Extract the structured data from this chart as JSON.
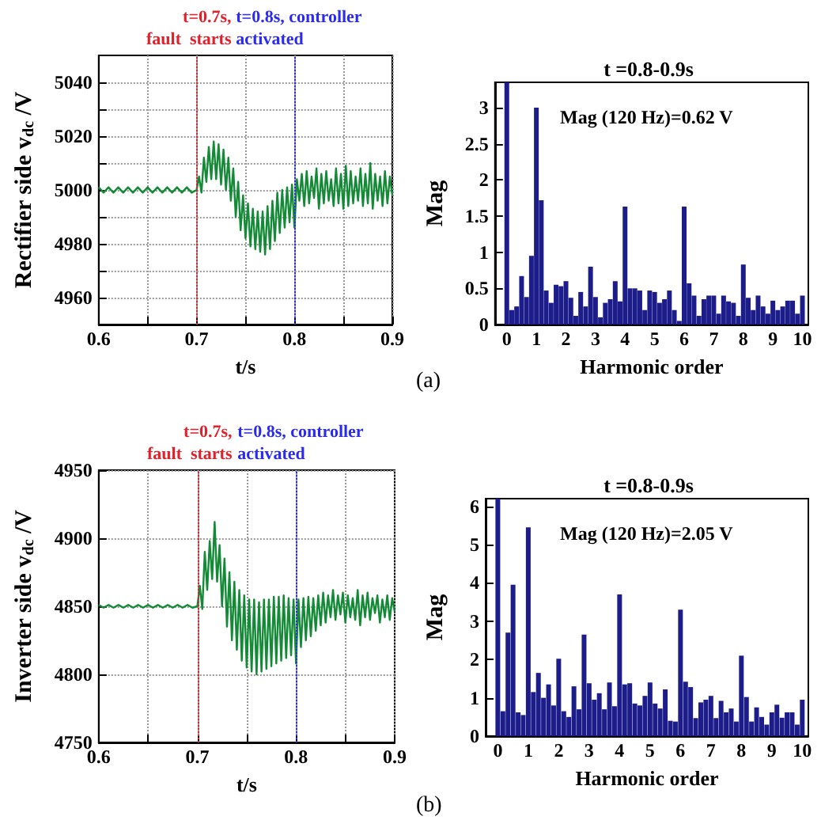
{
  "chart_data": [
    {
      "type": "line",
      "ylabel": "Rectifier side v$_{dc}$ /V",
      "xlabel": "t/s",
      "grid": true,
      "marker": "none",
      "xlim": [
        0.6,
        0.9
      ],
      "xticks": [
        0.6,
        {
          "value": 0.65,
          "label": null
        },
        0.7,
        {
          "value": 0.75,
          "label": null
        },
        0.8,
        {
          "value": 0.85,
          "label": null
        },
        0.9
      ],
      "ylim": [
        4950,
        5050
      ],
      "yticks": [
        4960,
        {
          "value": 4970,
          "label": null
        },
        4980,
        {
          "value": 4990,
          "label": null
        },
        5000,
        {
          "value": 5010,
          "label": null
        },
        5020,
        {
          "value": 5030,
          "label": null
        },
        5040
      ],
      "ref_lines": [
        {
          "axis": "x",
          "value": 0.7,
          "label": "t=0.7s,\nfault  starts",
          "color": "#e0202a",
          "line_style": "dotted"
        },
        {
          "axis": "x",
          "value": 0.8,
          "label": "t=0.8s, controller\nactivated",
          "color": "#2a2af0",
          "line_style": "dotted"
        }
      ],
      "series": [
        {
          "color": "#138a36",
          "x": [
            0.6,
            0.605,
            0.61,
            0.615,
            0.62,
            0.625,
            0.63,
            0.635,
            0.64,
            0.645,
            0.65,
            0.655,
            0.66,
            0.665,
            0.67,
            0.675,
            0.68,
            0.685,
            0.69,
            0.695,
            0.7,
            0.7025,
            0.705,
            0.7075,
            0.71,
            0.7125,
            0.715,
            0.7175,
            0.72,
            0.7225,
            0.725,
            0.7275,
            0.73,
            0.7325,
            0.735,
            0.7375,
            0.74,
            0.7425,
            0.745,
            0.7475,
            0.75,
            0.7525,
            0.755,
            0.7575,
            0.76,
            0.7625,
            0.765,
            0.7675,
            0.77,
            0.7725,
            0.775,
            0.7775,
            0.78,
            0.7825,
            0.785,
            0.7875,
            0.79,
            0.7925,
            0.795,
            0.7975,
            0.8,
            0.8025,
            0.805,
            0.8075,
            0.81,
            0.8125,
            0.815,
            0.8175,
            0.82,
            0.8225,
            0.825,
            0.8275,
            0.83,
            0.8325,
            0.835,
            0.8375,
            0.84,
            0.8425,
            0.845,
            0.8475,
            0.85,
            0.8525,
            0.855,
            0.8575,
            0.86,
            0.8625,
            0.865,
            0.8675,
            0.87,
            0.8725,
            0.875,
            0.8775,
            0.88,
            0.8825,
            0.885,
            0.8875,
            0.89,
            0.8925,
            0.895,
            0.8975,
            0.9
          ],
          "values": [
            5001,
            4999,
            5001,
            4999,
            5001,
            4999,
            5001,
            4999,
            5001,
            4999,
            5001,
            4999,
            5001,
            4999,
            5001,
            4999,
            5001,
            4999,
            5001,
            4999,
            5000,
            5005,
            4999,
            5012,
            5003,
            5016,
            5004,
            5018,
            5004,
            5017,
            5002,
            5015,
            5000,
            5012,
            4996,
            5008,
            4990,
            5003,
            4985,
            4998,
            4982,
            4995,
            4979,
            4993,
            4978,
            4992,
            4977,
            4992,
            4976,
            4994,
            4978,
            4996,
            4981,
            4999,
            4984,
            5000,
            4986,
            5001,
            4988,
            5002,
            4986,
            5004,
            4996,
            5006,
            4994,
            5007,
            4995,
            5005,
            4997,
            5008,
            4993,
            5006,
            4995,
            5007,
            4996,
            5004,
            4994,
            5008,
            4995,
            5006,
            4993,
            5009,
            4994,
            5007,
            4995,
            5005,
            4996,
            5008,
            4994,
            5006,
            4995,
            5010,
            4993,
            5006,
            4996,
            5005,
            4994,
            5007,
            4995,
            5005,
            4998
          ]
        }
      ]
    },
    {
      "type": "bar",
      "title": "t =0.8-0.9s",
      "ylabel": "Mag",
      "xlabel": "Harmonic order",
      "annotations": [
        "Mag (120 Hz)=0.62 V",
        "(a)"
      ],
      "xlim": [
        -0.4,
        10.2
      ],
      "xticks": [
        0,
        1,
        2,
        3,
        4,
        5,
        6,
        7,
        8,
        9,
        10
      ],
      "ylim": [
        0,
        3.35
      ],
      "yticks": [
        0,
        0.5,
        1,
        1.5,
        2,
        2.5,
        3
      ],
      "series": [
        {
          "color": "#1c1c8a",
          "x": [
            0,
            0.167,
            0.333,
            0.5,
            0.667,
            0.833,
            1,
            1.167,
            1.333,
            1.5,
            1.667,
            1.833,
            2,
            2.167,
            2.333,
            2.5,
            2.667,
            2.833,
            3,
            3.167,
            3.333,
            3.5,
            3.667,
            3.833,
            4,
            4.167,
            4.333,
            4.5,
            4.667,
            4.833,
            5,
            5.167,
            5.333,
            5.5,
            5.667,
            5.833,
            6,
            6.167,
            6.333,
            6.5,
            6.667,
            6.833,
            7,
            7.167,
            7.333,
            7.5,
            7.667,
            7.833,
            8,
            8.167,
            8.333,
            8.5,
            8.667,
            8.833,
            9,
            9.167,
            9.333,
            9.5,
            9.667,
            9.833,
            10
          ],
          "values": [
            3.35,
            0.2,
            0.25,
            0.67,
            0.38,
            0.95,
            3.0,
            1.72,
            0.47,
            0.3,
            0.55,
            0.53,
            0.6,
            0.37,
            0.12,
            0.45,
            0.25,
            0.8,
            0.38,
            0.1,
            0.3,
            0.35,
            0.6,
            0.32,
            1.63,
            0.5,
            0.5,
            0.47,
            0.2,
            0.47,
            0.45,
            0.3,
            0.35,
            0.47,
            0.2,
            0.05,
            1.63,
            0.57,
            0.4,
            0.12,
            0.35,
            0.4,
            0.4,
            0.15,
            0.4,
            0.32,
            0.3,
            0.12,
            0.83,
            0.37,
            0.2,
            0.4,
            0.25,
            0.15,
            0.33,
            0.2,
            0.25,
            0.33,
            0.33,
            0.15,
            0.4
          ]
        }
      ]
    },
    {
      "type": "line",
      "ylabel": "Inverter side v$_{dc}$ /V",
      "xlabel": "t/s",
      "grid": true,
      "marker": "none",
      "xlim": [
        0.6,
        0.9
      ],
      "xticks": [
        0.6,
        {
          "value": 0.65,
          "label": null
        },
        0.7,
        {
          "value": 0.75,
          "label": null
        },
        0.8,
        {
          "value": 0.85,
          "label": null
        },
        0.9
      ],
      "ylim": [
        4750,
        4950
      ],
      "yticks": [
        4750,
        4800,
        4850,
        4900,
        4950
      ],
      "ref_lines": [
        {
          "axis": "x",
          "value": 0.7,
          "label": "t=0.7s,\nfault  starts",
          "color": "#e0202a",
          "line_style": "dotted"
        },
        {
          "axis": "x",
          "value": 0.8,
          "label": "t=0.8s, controller\nactivated",
          "color": "#2a2af0",
          "line_style": "dotted"
        }
      ],
      "series": [
        {
          "color": "#138a36",
          "x": [
            0.6,
            0.605,
            0.61,
            0.615,
            0.62,
            0.625,
            0.63,
            0.635,
            0.64,
            0.645,
            0.65,
            0.655,
            0.66,
            0.665,
            0.67,
            0.675,
            0.68,
            0.685,
            0.69,
            0.695,
            0.7,
            0.7025,
            0.705,
            0.7075,
            0.71,
            0.7125,
            0.715,
            0.7175,
            0.72,
            0.7225,
            0.725,
            0.7275,
            0.73,
            0.7325,
            0.735,
            0.7375,
            0.74,
            0.7425,
            0.745,
            0.7475,
            0.75,
            0.7525,
            0.755,
            0.7575,
            0.76,
            0.7625,
            0.765,
            0.7675,
            0.77,
            0.7725,
            0.775,
            0.7775,
            0.78,
            0.7825,
            0.785,
            0.7875,
            0.79,
            0.7925,
            0.795,
            0.7975,
            0.8,
            0.8025,
            0.805,
            0.8075,
            0.81,
            0.8125,
            0.815,
            0.8175,
            0.82,
            0.8225,
            0.825,
            0.8275,
            0.83,
            0.8325,
            0.835,
            0.8375,
            0.84,
            0.8425,
            0.845,
            0.8475,
            0.85,
            0.8525,
            0.855,
            0.8575,
            0.86,
            0.8625,
            0.865,
            0.8675,
            0.87,
            0.8725,
            0.875,
            0.8775,
            0.88,
            0.8825,
            0.885,
            0.8875,
            0.89,
            0.8925,
            0.895,
            0.8975,
            0.9
          ],
          "values": [
            4851,
            4849,
            4851,
            4849,
            4851,
            4849,
            4851,
            4849,
            4851,
            4849,
            4851,
            4849,
            4851,
            4849,
            4851,
            4849,
            4851,
            4849,
            4851,
            4849,
            4850,
            4865,
            4848,
            4890,
            4862,
            4898,
            4870,
            4912,
            4868,
            4895,
            4850,
            4885,
            4835,
            4875,
            4825,
            4868,
            4818,
            4862,
            4810,
            4858,
            4805,
            4855,
            4802,
            4855,
            4800,
            4853,
            4802,
            4855,
            4804,
            4855,
            4806,
            4857,
            4808,
            4857,
            4810,
            4858,
            4812,
            4856,
            4814,
            4855,
            4808,
            4855,
            4820,
            4856,
            4825,
            4857,
            4828,
            4856,
            4832,
            4858,
            4836,
            4860,
            4838,
            4858,
            4842,
            4862,
            4840,
            4858,
            4844,
            4860,
            4838,
            4858,
            4842,
            4856,
            4840,
            4862,
            4836,
            4858,
            4842,
            4860,
            4840,
            4856,
            4845,
            4858,
            4838,
            4855,
            4842,
            4858,
            4840,
            4856,
            4846
          ]
        }
      ]
    },
    {
      "type": "bar",
      "title": "t =0.8-0.9s",
      "ylabel": "Mag",
      "xlabel": "Harmonic order",
      "annotations": [
        "Mag (120 Hz)=2.05 V",
        "(b)"
      ],
      "xlim": [
        -0.4,
        10.2
      ],
      "xticks": [
        0,
        1,
        2,
        3,
        4,
        5,
        6,
        7,
        8,
        9,
        10
      ],
      "ylim": [
        0,
        6.2
      ],
      "yticks": [
        0,
        1,
        2,
        3,
        4,
        5,
        6
      ],
      "series": [
        {
          "color": "#1c1c8a",
          "x": [
            0,
            0.167,
            0.333,
            0.5,
            0.667,
            0.833,
            1,
            1.167,
            1.333,
            1.5,
            1.667,
            1.833,
            2,
            2.167,
            2.333,
            2.5,
            2.667,
            2.833,
            3,
            3.167,
            3.333,
            3.5,
            3.667,
            3.833,
            4,
            4.167,
            4.333,
            4.5,
            4.667,
            4.833,
            5,
            5.167,
            5.333,
            5.5,
            5.667,
            5.833,
            6,
            6.167,
            6.333,
            6.5,
            6.667,
            6.833,
            7,
            7.167,
            7.333,
            7.5,
            7.667,
            7.833,
            8,
            8.167,
            8.333,
            8.5,
            8.667,
            8.833,
            9,
            9.167,
            9.333,
            9.5,
            9.667,
            9.833,
            10
          ],
          "values": [
            6.2,
            0.65,
            2.7,
            3.95,
            0.62,
            0.55,
            5.45,
            1.15,
            1.65,
            1.0,
            1.35,
            0.8,
            2.02,
            0.65,
            0.5,
            1.3,
            0.7,
            2.65,
            1.38,
            0.95,
            1.12,
            0.7,
            1.4,
            0.78,
            3.7,
            1.35,
            1.38,
            0.85,
            0.8,
            1.05,
            1.4,
            0.85,
            0.72,
            1.22,
            0.4,
            0.38,
            3.3,
            1.42,
            1.28,
            0.47,
            0.88,
            0.95,
            1.05,
            0.47,
            0.92,
            0.62,
            0.72,
            0.38,
            2.1,
            1.02,
            0.38,
            0.75,
            0.5,
            0.3,
            0.62,
            0.82,
            0.48,
            0.62,
            0.62,
            0.3,
            0.95
          ]
        }
      ]
    }
  ]
}
